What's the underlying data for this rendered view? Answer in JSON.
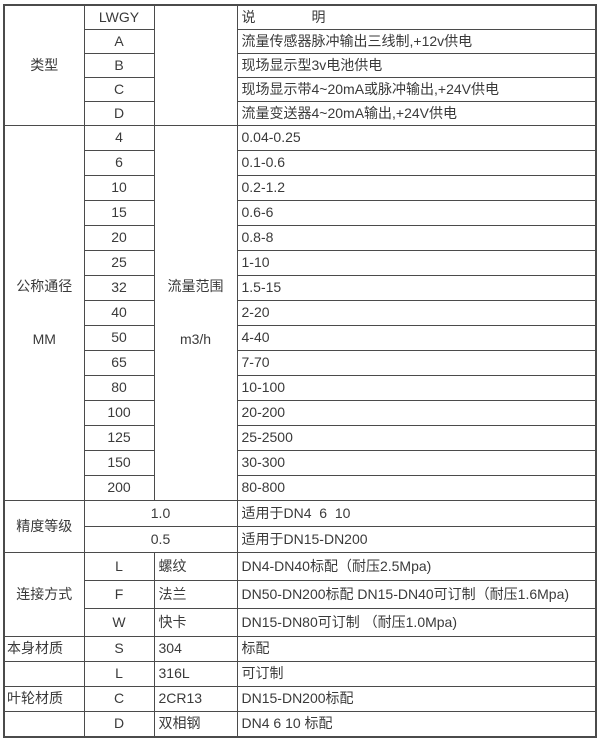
{
  "header": {
    "model": "LWGY",
    "description_title": "说　　　　明"
  },
  "type": {
    "label": "类型",
    "rows": [
      {
        "code": "A",
        "desc": "流量传感器脉冲输出三线制,+12v供电"
      },
      {
        "code": "B",
        "desc": "现场显示型3v电池供电"
      },
      {
        "code": "C",
        "desc": "现场显示带4~20mA或脉冲输出,+24V供电"
      },
      {
        "code": "D",
        "desc": "流量变送器4~20mA输出,+24V供电"
      }
    ]
  },
  "diameter": {
    "label_line1": "公称通径",
    "label_line2": "MM",
    "range_label_line1": "流量范围",
    "range_label_line2": "m3/h",
    "rows": [
      {
        "dn": "4",
        "range": "0.04-0.25"
      },
      {
        "dn": "6",
        "range": "0.1-0.6"
      },
      {
        "dn": "10",
        "range": "0.2-1.2"
      },
      {
        "dn": "15",
        "range": "0.6-6"
      },
      {
        "dn": "20",
        "range": "0.8-8"
      },
      {
        "dn": "25",
        "range": "1-10"
      },
      {
        "dn": "32",
        "range": "1.5-15"
      },
      {
        "dn": "40",
        "range": "2-20"
      },
      {
        "dn": "50",
        "range": "4-40"
      },
      {
        "dn": "65",
        "range": "7-70"
      },
      {
        "dn": "80",
        "range": "10-100"
      },
      {
        "dn": "100",
        "range": "20-200"
      },
      {
        "dn": "125",
        "range": "25-2500"
      },
      {
        "dn": "150",
        "range": "30-300"
      },
      {
        "dn": "200",
        "range": "80-800"
      }
    ]
  },
  "accuracy": {
    "label": "精度等级",
    "rows": [
      {
        "value": "1.0",
        "desc": "适用于DN4  6  10"
      },
      {
        "value": "0.5",
        "desc": "适用于DN15-DN200"
      }
    ]
  },
  "connection": {
    "label": "连接方式",
    "rows": [
      {
        "code": "L",
        "name": "螺纹",
        "desc": "DN4-DN40标配（耐压2.5Mpa)"
      },
      {
        "code": "F",
        "name": "法兰",
        "desc": "DN50-DN200标配 DN15-DN40可订制（耐压1.6Mpa)"
      },
      {
        "code": "W",
        "name": "快卡",
        "desc": "DN15-DN80可订制 （耐压1.0Mpa)"
      }
    ]
  },
  "materials": {
    "rows": [
      {
        "label": "本身材质",
        "code": "S",
        "name": "304",
        "desc": "标配"
      },
      {
        "label": "",
        "code": "L",
        "name": "316L",
        "desc": "可订制"
      },
      {
        "label": "叶轮材质",
        "code": "C",
        "name": "2CR13",
        "desc": "DN15-DN200标配"
      },
      {
        "label": "",
        "code": "D",
        "name": "双相钢",
        "desc": "DN4 6 10 标配"
      }
    ]
  },
  "colors": {
    "border": "#4b4b4b",
    "text": "#3a3a3a",
    "background": "#ffffff"
  }
}
